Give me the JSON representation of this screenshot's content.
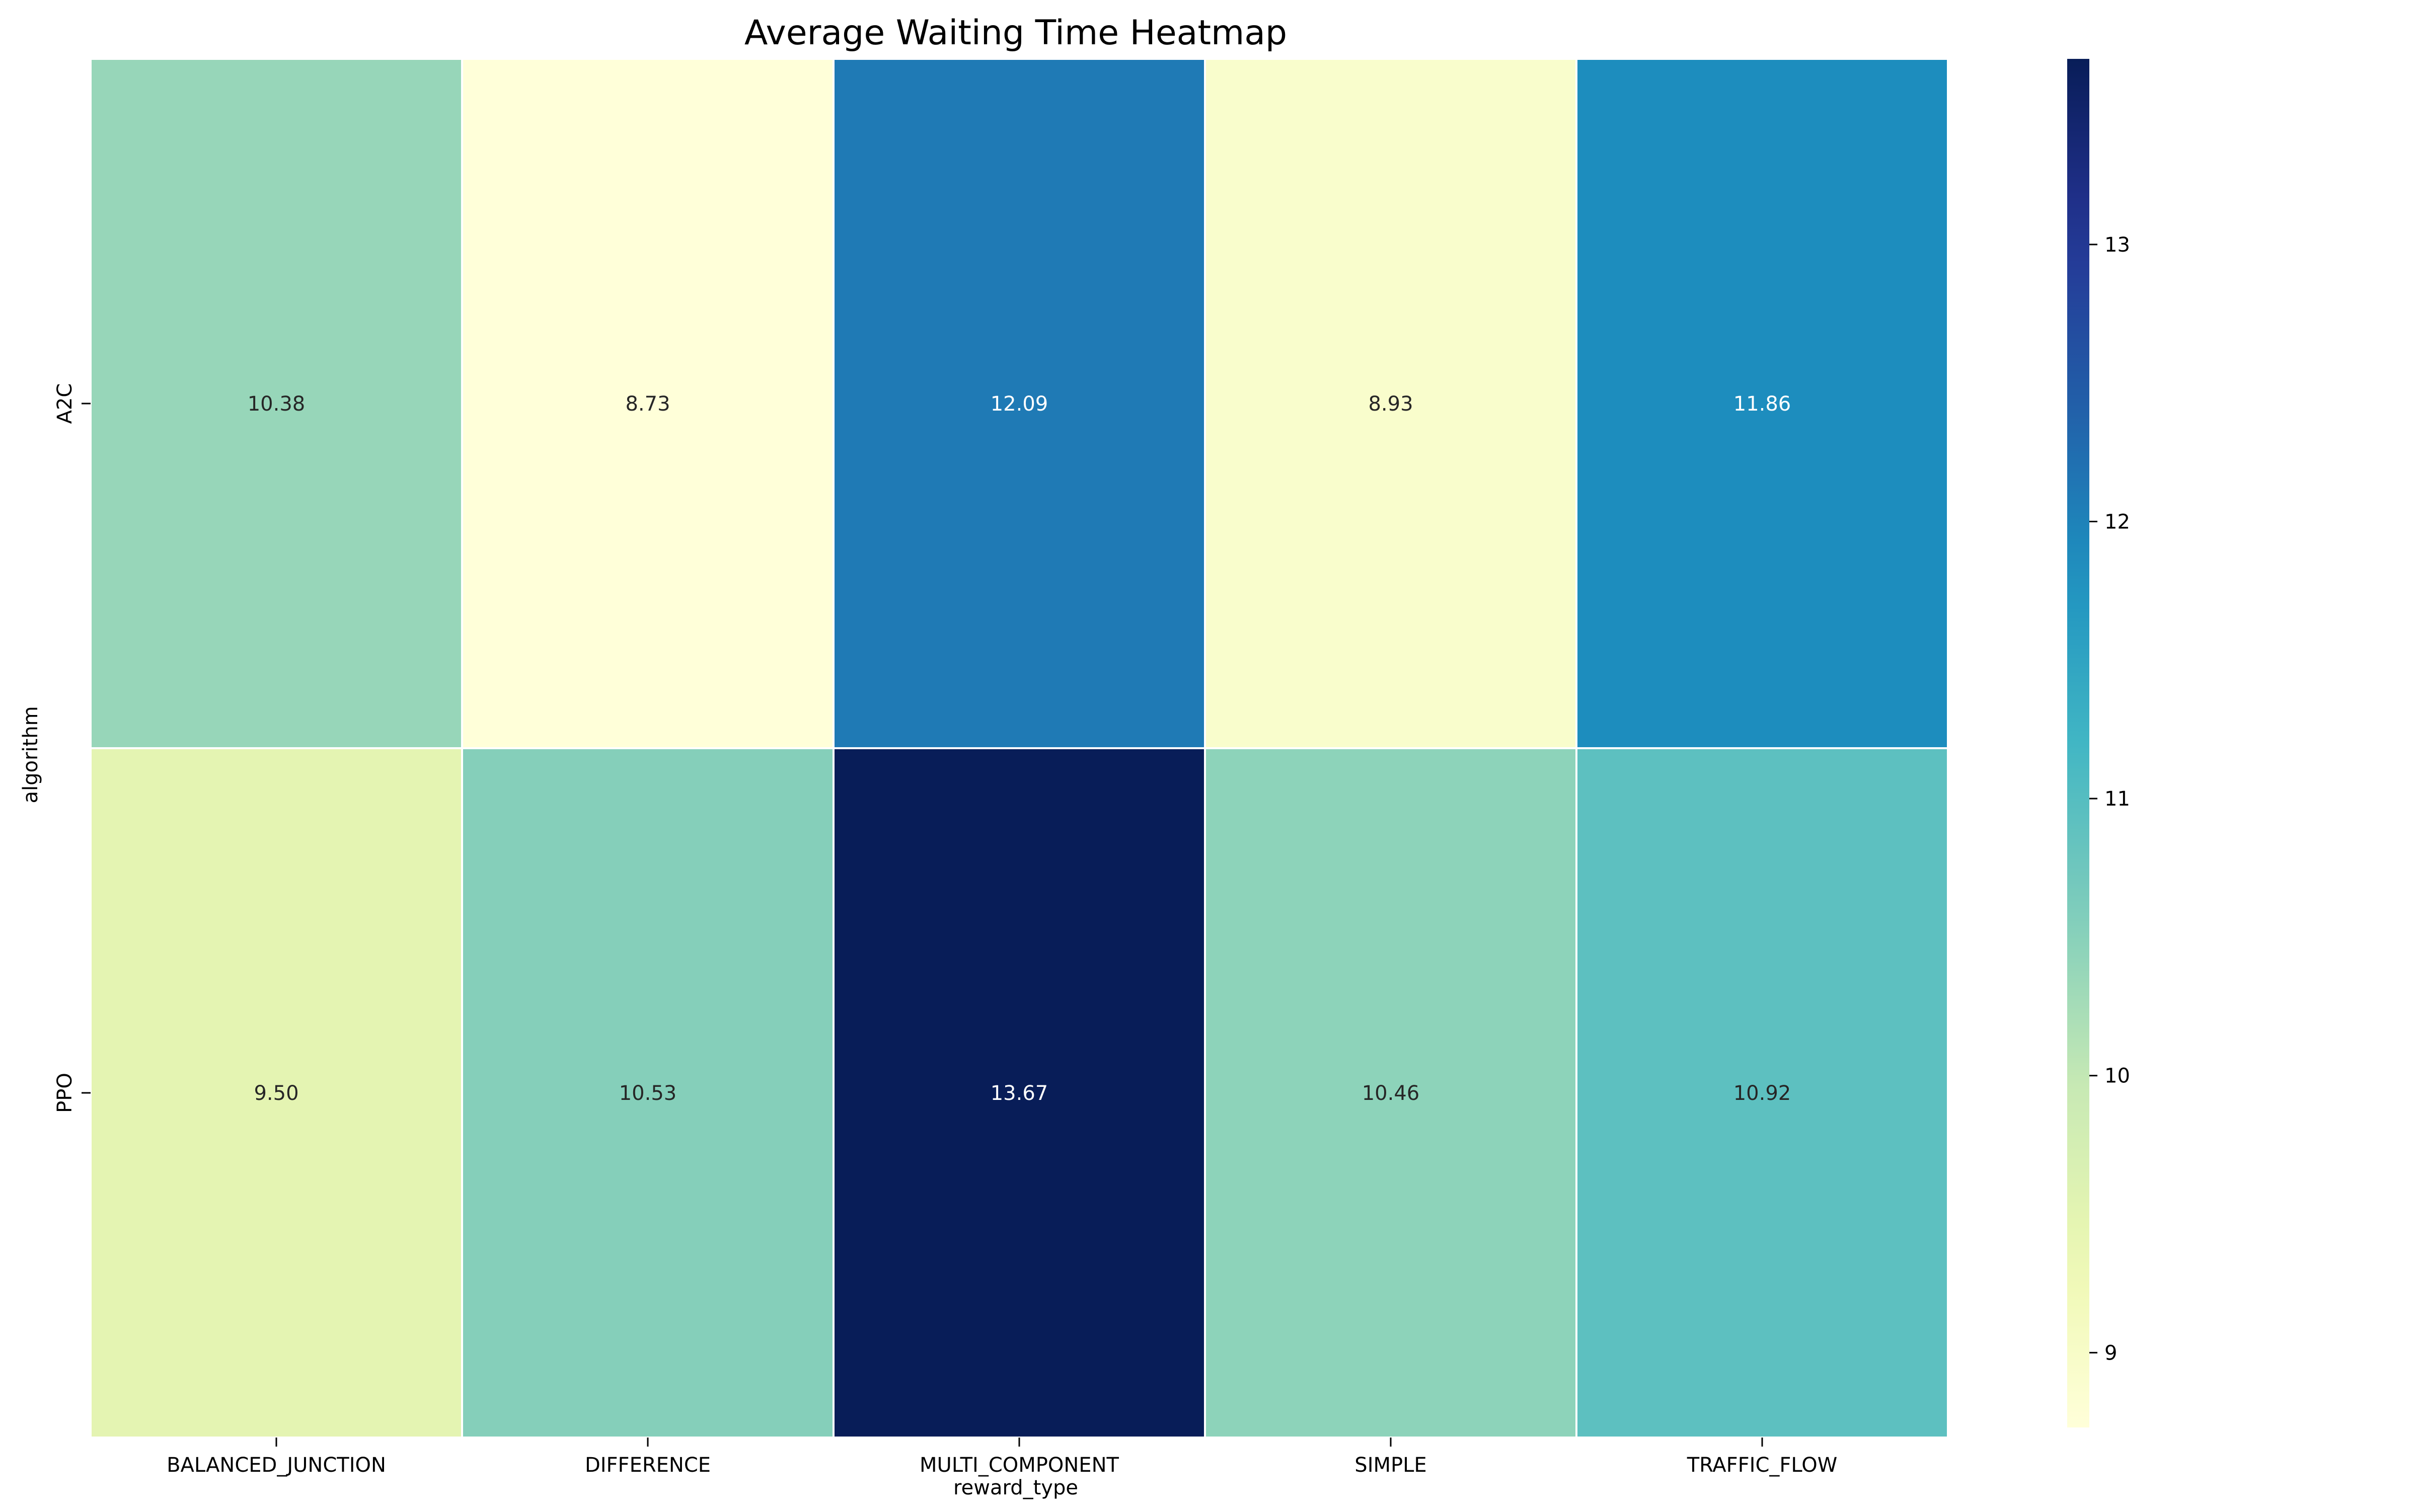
{
  "chart_data": {
    "type": "heatmap",
    "title": "Average Waiting Time Heatmap",
    "xlabel": "reward_type",
    "ylabel": "algorithm",
    "x_categories": [
      "BALANCED_JUNCTION",
      "DIFFERENCE",
      "MULTI_COMPONENT",
      "SIMPLE",
      "TRAFFIC_FLOW"
    ],
    "y_categories": [
      "A2C",
      "PPO"
    ],
    "values": [
      [
        10.38,
        8.73,
        12.09,
        8.93,
        11.86
      ],
      [
        9.5,
        10.53,
        13.67,
        10.46,
        10.92
      ]
    ],
    "value_labels": [
      [
        "10.38",
        "8.73",
        "12.09",
        "8.93",
        "11.86"
      ],
      [
        "9.50",
        "10.53",
        "13.67",
        "10.46",
        "10.92"
      ]
    ],
    "colorbar": {
      "colormap": "YlGnBu",
      "range": [
        8.73,
        13.67
      ],
      "ticks": [
        9,
        10,
        11,
        12,
        13
      ],
      "tick_labels": [
        "9",
        "10",
        "11",
        "12",
        "13"
      ]
    },
    "grid": false,
    "legend": "colorbar-right"
  }
}
